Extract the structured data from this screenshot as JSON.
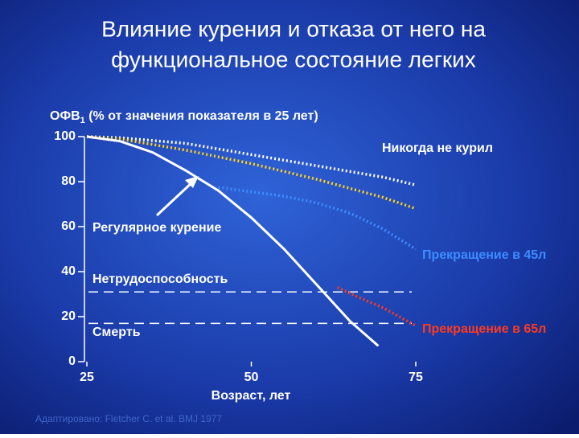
{
  "chart_data": {
    "type": "line",
    "title": [
      "Влияние курения и отказа от него на",
      "функциональное состояние легких"
    ],
    "ylabel": {
      "main": "ОФВ",
      "sub": "1",
      "rest": " (% от значения показателя в 25 лет)"
    },
    "xlabel": "Возраст, лет",
    "source": "Адаптировано: Fletcher C. et al. BMJ 1977",
    "xlim": [
      25,
      75
    ],
    "xticks": [
      25,
      50,
      75
    ],
    "ylim": [
      0,
      100
    ],
    "yticks": [
      0,
      20,
      40,
      60,
      80,
      100
    ],
    "series": [
      {
        "name": "Никогда не курил",
        "color": "#ffffff",
        "style": "dotted",
        "x": [
          25,
          30,
          40,
          50,
          60,
          70,
          75
        ],
        "values": [
          100,
          99.5,
          97,
          92,
          87,
          82,
          78.5
        ]
      },
      {
        "color": "#ffd21e",
        "style": "dotted",
        "x": [
          25,
          30,
          40,
          50,
          60,
          70,
          75
        ],
        "values": [
          100,
          99,
          94,
          88,
          81,
          73,
          68
        ]
      },
      {
        "name": "Регулярное курение",
        "color": "#ffffff",
        "style": "solid",
        "x": [
          25,
          30,
          35,
          40,
          45,
          50,
          55,
          60,
          65,
          69.3
        ],
        "values": [
          100,
          98,
          93,
          85,
          76,
          64,
          50,
          34,
          18,
          7
        ]
      },
      {
        "name": "Прекращение в 45л",
        "color": "#3c8cff",
        "style": "dotted",
        "x": [
          45,
          50,
          55,
          60,
          65,
          70,
          75
        ],
        "values": [
          77.5,
          75.5,
          73.5,
          70.5,
          66,
          59,
          50
        ]
      },
      {
        "name": "Прекращение в 65л",
        "color": "#ff3a1e",
        "style": "dotted",
        "x": [
          63.1,
          66,
          70,
          75
        ],
        "values": [
          33,
          29,
          24,
          16
        ]
      }
    ],
    "hlines": [
      {
        "name": "Нетрудоспособность",
        "value": 31
      },
      {
        "name": "Смерть",
        "value": 17
      }
    ]
  }
}
